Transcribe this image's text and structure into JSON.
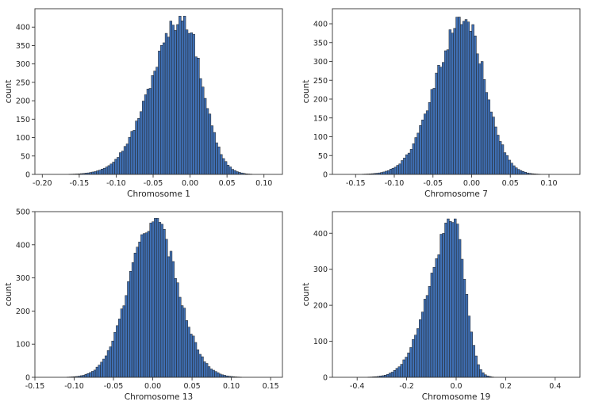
{
  "chart_data": [
    {
      "type": "bar",
      "xlabel": "Chromosome 1",
      "ylabel": "count",
      "xlim": [
        -0.21,
        0.125
      ],
      "ylim": [
        0,
        450
      ],
      "xticks": [
        -0.2,
        -0.15,
        -0.1,
        -0.05,
        0.0,
        0.05,
        0.1
      ],
      "xtick_labels": [
        "-0.20",
        "-0.15",
        "-0.10",
        "-0.05",
        "0.00",
        "0.05",
        "0.10"
      ],
      "yticks": [
        0,
        50,
        100,
        150,
        200,
        250,
        300,
        350,
        400
      ],
      "ytick_labels": [
        "0",
        "50",
        "100",
        "150",
        "200",
        "250",
        "300",
        "350",
        "400"
      ],
      "peak": {
        "x": -0.01,
        "count": 430
      },
      "shape": {
        "sigma_left": 0.042,
        "sigma_right": 0.026
      },
      "x_range": [
        -0.195,
        0.115
      ],
      "bins": 100,
      "bar_color": "#3f6fb3",
      "edge_color": "#222222"
    },
    {
      "type": "bar",
      "xlabel": "Chromosome 7",
      "ylabel": "count",
      "xlim": [
        -0.18,
        0.14
      ],
      "ylim": [
        0,
        440
      ],
      "xticks": [
        -0.15,
        -0.1,
        -0.05,
        0.0,
        0.05,
        0.1
      ],
      "xtick_labels": [
        "-0.15",
        "-0.10",
        "-0.05",
        "0.00",
        "0.05",
        "0.10"
      ],
      "yticks": [
        0,
        50,
        100,
        150,
        200,
        250,
        300,
        350,
        400
      ],
      "ytick_labels": [
        "0",
        "50",
        "100",
        "150",
        "200",
        "250",
        "300",
        "350",
        "400"
      ],
      "peak": {
        "x": -0.01,
        "count": 418
      },
      "shape": {
        "sigma_left": 0.036,
        "sigma_right": 0.027
      },
      "x_range": [
        -0.165,
        0.13
      ],
      "bins": 100,
      "bar_color": "#3f6fb3",
      "edge_color": "#222222"
    },
    {
      "type": "bar",
      "xlabel": "Chromosome 13",
      "ylabel": "count",
      "xlim": [
        -0.15,
        0.165
      ],
      "ylim": [
        0,
        500
      ],
      "xticks": [
        -0.15,
        -0.1,
        -0.05,
        0.0,
        0.05,
        0.1,
        0.15
      ],
      "xtick_labels": [
        "-0.15",
        "-0.10",
        "-0.05",
        "0.00",
        "0.05",
        "0.10",
        "0.15"
      ],
      "yticks": [
        0,
        100,
        200,
        300,
        400,
        500
      ],
      "ytick_labels": [
        "0",
        "100",
        "200",
        "300",
        "400",
        "500"
      ],
      "peak": {
        "x": 0.0,
        "count": 480
      },
      "shape": {
        "sigma_left": 0.03,
        "sigma_right": 0.031
      },
      "x_range": [
        -0.135,
        0.15
      ],
      "bins": 100,
      "bar_color": "#3f6fb3",
      "edge_color": "#222222"
    },
    {
      "type": "bar",
      "xlabel": "Chromosome 19",
      "ylabel": "count",
      "xlim": [
        -0.5,
        0.5
      ],
      "ylim": [
        0,
        460
      ],
      "xticks": [
        -0.4,
        -0.2,
        0.0,
        0.2,
        0.4
      ],
      "xtick_labels": [
        "-0.4",
        "-0.2",
        "0.0",
        "0.2",
        "0.4"
      ],
      "yticks": [
        0,
        100,
        200,
        300,
        400
      ],
      "ytick_labels": [
        "0",
        "100",
        "200",
        "300",
        "400"
      ],
      "peak": {
        "x": -0.01,
        "count": 440
      },
      "shape": {
        "sigma_left": 0.095,
        "sigma_right": 0.045
      },
      "x_range": [
        -0.46,
        0.48
      ],
      "bins": 100,
      "bar_color": "#3f6fb3",
      "edge_color": "#222222"
    }
  ]
}
